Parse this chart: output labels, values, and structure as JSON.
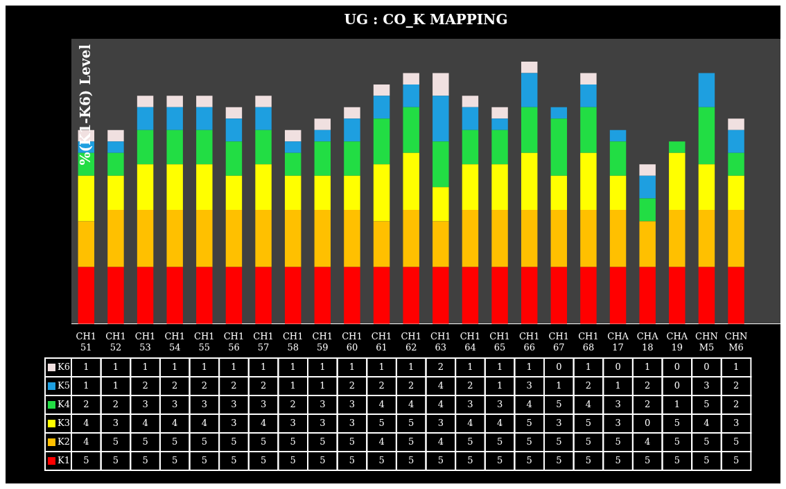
{
  "chart_data": {
    "type": "bar",
    "title": "UG : CO_K MAPPING",
    "ylabel": "%(K1-K6) Level",
    "stacked": true,
    "data_labels": true,
    "legend": "left",
    "categories": [
      "CH151",
      "CH152",
      "CH153",
      "CH154",
      "CH155",
      "CH156",
      "CH157",
      "CH158",
      "CH159",
      "CH160",
      "CH161",
      "CH162",
      "CH163",
      "CH164",
      "CH165",
      "CH166",
      "CH167",
      "CH168",
      "CHA17",
      "CHA18",
      "CHA19",
      "CHNM5",
      "CHNM6",
      null
    ],
    "series": [
      {
        "name": "K1",
        "color": "#ff0000",
        "values": [
          5,
          5,
          5,
          5,
          5,
          5,
          5,
          5,
          5,
          5,
          5,
          5,
          5,
          5,
          5,
          5,
          5,
          5,
          5,
          5,
          5,
          5,
          5,
          null
        ]
      },
      {
        "name": "K2",
        "color": "#ffc000",
        "values": [
          4,
          5,
          5,
          5,
          5,
          5,
          5,
          5,
          5,
          5,
          4,
          5,
          4,
          5,
          5,
          5,
          5,
          5,
          5,
          4,
          5,
          5,
          5,
          null
        ]
      },
      {
        "name": "K3",
        "color": "#ffff00",
        "values": [
          4,
          3,
          4,
          4,
          4,
          3,
          4,
          3,
          3,
          3,
          5,
          5,
          3,
          4,
          4,
          5,
          3,
          5,
          3,
          0,
          5,
          4,
          3,
          null
        ]
      },
      {
        "name": "K4",
        "color": "#22dd44",
        "values": [
          2,
          2,
          3,
          3,
          3,
          3,
          3,
          2,
          3,
          3,
          4,
          4,
          4,
          3,
          3,
          4,
          5,
          4,
          3,
          2,
          1,
          5,
          2,
          null
        ]
      },
      {
        "name": "K5",
        "color": "#1e9fe0",
        "values": [
          1,
          1,
          2,
          2,
          2,
          2,
          2,
          1,
          1,
          2,
          2,
          2,
          4,
          2,
          1,
          3,
          1,
          2,
          1,
          2,
          0,
          3,
          2,
          null
        ]
      },
      {
        "name": "K6",
        "color": "#f0e0e0",
        "values": [
          1,
          1,
          1,
          1,
          1,
          1,
          1,
          1,
          1,
          1,
          1,
          1,
          2,
          1,
          1,
          1,
          0,
          1,
          0,
          1,
          0,
          0,
          1,
          null
        ]
      }
    ]
  }
}
